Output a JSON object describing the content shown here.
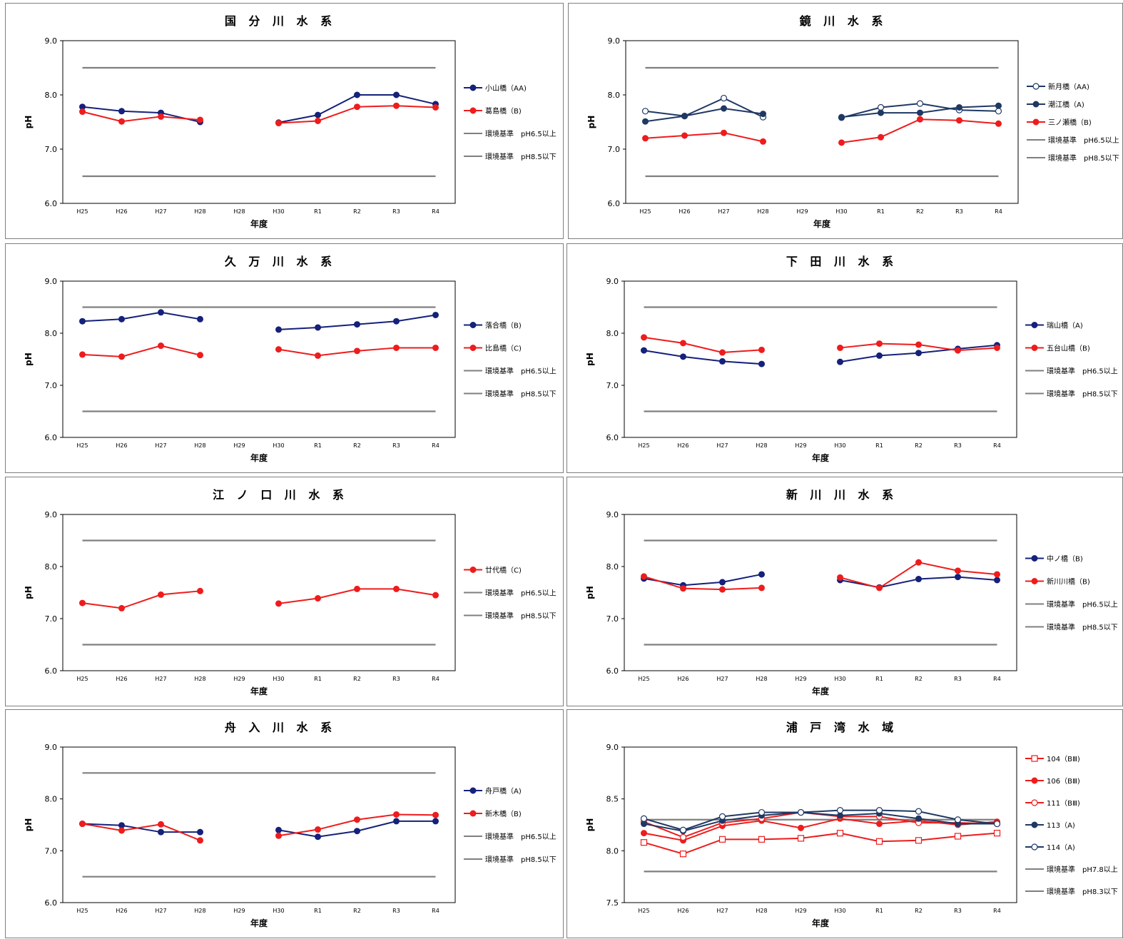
{
  "colors": {
    "navy": "#15217a",
    "slate": "#1f3864",
    "red": "#ee1c1c",
    "std": "#7f7f7f"
  },
  "chart_data": [
    {
      "type": "line",
      "title": "国 分 川 水 系",
      "xlabel": "年度",
      "ylabel": "pH",
      "ylim": [
        6.0,
        9.0
      ],
      "yticks": [
        "6.0",
        "7.0",
        "8.0",
        "9.0"
      ],
      "categories": [
        "H25",
        "H26",
        "H27",
        "H28",
        "H28",
        "H30",
        "R1",
        "R2",
        "R3",
        "R4"
      ],
      "series": [
        {
          "name": "小山橋（AA)",
          "color": "#15217a",
          "marker": "filled",
          "values": [
            7.78,
            7.7,
            7.67,
            7.5,
            null,
            7.49,
            7.63,
            8.0,
            8.0,
            7.83
          ]
        },
        {
          "name": "葛島橋（B)",
          "color": "#ee1c1c",
          "marker": "filled",
          "values": [
            7.69,
            7.51,
            7.6,
            7.54,
            null,
            7.48,
            7.52,
            7.78,
            7.8,
            7.77
          ]
        },
        {
          "name": "環境基準　pH6.5以上",
          "color": "#7f7f7f",
          "marker": "none",
          "values": [
            6.5,
            6.5,
            6.5,
            6.5,
            6.5,
            6.5,
            6.5,
            6.5,
            6.5,
            6.5
          ]
        },
        {
          "name": "環境基準　pH8.5以下",
          "color": "#7f7f7f",
          "marker": "none",
          "values": [
            8.5,
            8.5,
            8.5,
            8.5,
            8.5,
            8.5,
            8.5,
            8.5,
            8.5,
            8.5
          ]
        }
      ]
    },
    {
      "type": "line",
      "title": "鏡 川 水 系",
      "xlabel": "年度",
      "ylabel": "pH",
      "ylim": [
        6.0,
        9.0
      ],
      "yticks": [
        "6.0",
        "7.0",
        "8.0",
        "9.0"
      ],
      "categories": [
        "H25",
        "H26",
        "H27",
        "H28",
        "H29",
        "H30",
        "R1",
        "R2",
        "R3",
        "R4"
      ],
      "series": [
        {
          "name": "新月橋（AA)",
          "color": "#1f3864",
          "marker": "open",
          "values": [
            7.7,
            7.61,
            7.94,
            7.59,
            null,
            7.58,
            7.77,
            7.84,
            7.72,
            7.7
          ]
        },
        {
          "name": "潮江橋（A)",
          "color": "#1f3864",
          "marker": "filled",
          "values": [
            7.51,
            7.61,
            7.75,
            7.65,
            null,
            7.59,
            7.67,
            7.67,
            7.77,
            7.8
          ]
        },
        {
          "name": "三ノ瀬橋（B)",
          "color": "#ee1c1c",
          "marker": "filled",
          "values": [
            7.2,
            7.25,
            7.3,
            7.14,
            null,
            7.12,
            7.22,
            7.55,
            7.53,
            7.47
          ]
        },
        {
          "name": "環境基準　pH6.5以上",
          "color": "#7f7f7f",
          "marker": "none",
          "values": [
            6.5,
            6.5,
            6.5,
            6.5,
            6.5,
            6.5,
            6.5,
            6.5,
            6.5,
            6.5
          ]
        },
        {
          "name": "環境基準　pH8.5以下",
          "color": "#7f7f7f",
          "marker": "none",
          "values": [
            8.5,
            8.5,
            8.5,
            8.5,
            8.5,
            8.5,
            8.5,
            8.5,
            8.5,
            8.5
          ]
        }
      ]
    },
    {
      "type": "line",
      "title": "久 万 川 水 系",
      "xlabel": "年度",
      "ylabel": "pH",
      "ylim": [
        6.0,
        9.0
      ],
      "yticks": [
        "6.0",
        "7.0",
        "8.0",
        "9.0"
      ],
      "categories": [
        "H25",
        "H26",
        "H27",
        "H28",
        "H29",
        "H30",
        "R1",
        "R2",
        "R3",
        "R4"
      ],
      "series": [
        {
          "name": "落合橋（B)",
          "color": "#15217a",
          "marker": "filled",
          "values": [
            8.23,
            8.27,
            8.4,
            8.27,
            null,
            8.07,
            8.11,
            8.17,
            8.23,
            8.35
          ]
        },
        {
          "name": "比島橋（C)",
          "color": "#ee1c1c",
          "marker": "filled",
          "values": [
            7.59,
            7.55,
            7.76,
            7.58,
            null,
            7.69,
            7.57,
            7.66,
            7.72,
            7.72
          ]
        },
        {
          "name": "環境基準　pH6.5以上",
          "color": "#7f7f7f",
          "marker": "none",
          "values": [
            6.5,
            6.5,
            6.5,
            6.5,
            6.5,
            6.5,
            6.5,
            6.5,
            6.5,
            6.5
          ]
        },
        {
          "name": "環境基準　pH8.5以下",
          "color": "#7f7f7f",
          "marker": "none",
          "values": [
            8.5,
            8.5,
            8.5,
            8.5,
            8.5,
            8.5,
            8.5,
            8.5,
            8.5,
            8.5
          ]
        }
      ]
    },
    {
      "type": "line",
      "title": "下 田 川 水 系",
      "xlabel": "年度",
      "ylabel": "pH",
      "ylim": [
        6.0,
        9.0
      ],
      "yticks": [
        "6.0",
        "7.0",
        "8.0",
        "9.0"
      ],
      "categories": [
        "H25",
        "H26",
        "H27",
        "H28",
        "H29",
        "H30",
        "R1",
        "R2",
        "R3",
        "R4"
      ],
      "series": [
        {
          "name": "瑞山橋（A)",
          "color": "#15217a",
          "marker": "filled",
          "values": [
            7.67,
            7.55,
            7.46,
            7.41,
            null,
            7.45,
            7.57,
            7.62,
            7.7,
            7.77
          ]
        },
        {
          "name": "五台山橋（B)",
          "color": "#ee1c1c",
          "marker": "filled",
          "values": [
            7.92,
            7.81,
            7.63,
            7.68,
            null,
            7.72,
            7.8,
            7.78,
            7.67,
            7.72
          ]
        },
        {
          "name": "環境基準　pH6.5以上",
          "color": "#7f7f7f",
          "marker": "none",
          "values": [
            6.5,
            6.5,
            6.5,
            6.5,
            6.5,
            6.5,
            6.5,
            6.5,
            6.5,
            6.5
          ]
        },
        {
          "name": "環境基準　pH8.5以下",
          "color": "#7f7f7f",
          "marker": "none",
          "values": [
            8.5,
            8.5,
            8.5,
            8.5,
            8.5,
            8.5,
            8.5,
            8.5,
            8.5,
            8.5
          ]
        }
      ]
    },
    {
      "type": "line",
      "title": "江 ノ 口 川 水 系",
      "xlabel": "年度",
      "ylabel": "pH",
      "ylim": [
        6.0,
        9.0
      ],
      "yticks": [
        "6.0",
        "7.0",
        "8.0",
        "9.0"
      ],
      "categories": [
        "H25",
        "H26",
        "H27",
        "H28",
        "H29",
        "H30",
        "R1",
        "R2",
        "R3",
        "R4"
      ],
      "series": [
        {
          "name": "廿代橋（C)",
          "color": "#ee1c1c",
          "marker": "filled",
          "values": [
            7.3,
            7.2,
            7.46,
            7.53,
            null,
            7.29,
            7.39,
            7.57,
            7.57,
            7.45
          ]
        },
        {
          "name": "環境基準　pH6.5以上",
          "color": "#7f7f7f",
          "marker": "none",
          "values": [
            6.5,
            6.5,
            6.5,
            6.5,
            6.5,
            6.5,
            6.5,
            6.5,
            6.5,
            6.5
          ]
        },
        {
          "name": "環境基準　pH8.5以下",
          "color": "#7f7f7f",
          "marker": "none",
          "values": [
            8.5,
            8.5,
            8.5,
            8.5,
            8.5,
            8.5,
            8.5,
            8.5,
            8.5,
            8.5
          ]
        }
      ]
    },
    {
      "type": "line",
      "title": "新 川 川 水 系",
      "xlabel": "年度",
      "ylabel": "pH",
      "ylim": [
        6.0,
        9.0
      ],
      "yticks": [
        "6.0",
        "7.0",
        "8.0",
        "9.0"
      ],
      "categories": [
        "H25",
        "H26",
        "H27",
        "H28",
        "H29",
        "H30",
        "R1",
        "R2",
        "R3",
        "R4"
      ],
      "series": [
        {
          "name": "中ノ橋（B)",
          "color": "#15217a",
          "marker": "filled",
          "values": [
            7.77,
            7.64,
            7.7,
            7.85,
            null,
            7.74,
            7.6,
            7.76,
            7.8,
            7.74
          ]
        },
        {
          "name": "新川川橋（B)",
          "color": "#ee1c1c",
          "marker": "filled",
          "values": [
            7.81,
            7.58,
            7.56,
            7.59,
            null,
            7.79,
            7.59,
            8.08,
            7.92,
            7.85
          ]
        },
        {
          "name": "環境基準　pH6.5以上",
          "color": "#7f7f7f",
          "marker": "none",
          "values": [
            6.5,
            6.5,
            6.5,
            6.5,
            6.5,
            6.5,
            6.5,
            6.5,
            6.5,
            6.5
          ]
        },
        {
          "name": "環境基準　pH8.5以下",
          "color": "#7f7f7f",
          "marker": "none",
          "values": [
            8.5,
            8.5,
            8.5,
            8.5,
            8.5,
            8.5,
            8.5,
            8.5,
            8.5,
            8.5
          ]
        }
      ]
    },
    {
      "type": "line",
      "title": "舟 入 川 水 系",
      "xlabel": "年度",
      "ylabel": "pH",
      "ylim": [
        6.0,
        9.0
      ],
      "yticks": [
        "6.0",
        "7.0",
        "8.0",
        "9.0"
      ],
      "categories": [
        "H25",
        "H26",
        "H27",
        "H28",
        "H29",
        "H30",
        "R1",
        "R2",
        "R3",
        "R4"
      ],
      "series": [
        {
          "name": "舟戸橋（A)",
          "color": "#15217a",
          "marker": "filled",
          "values": [
            7.52,
            7.49,
            7.36,
            7.36,
            null,
            7.4,
            7.27,
            7.38,
            7.57,
            7.57
          ]
        },
        {
          "name": "新木橋（B)",
          "color": "#ee1c1c",
          "marker": "filled",
          "values": [
            7.52,
            7.39,
            7.51,
            7.2,
            null,
            7.29,
            7.41,
            7.6,
            7.7,
            7.69
          ]
        },
        {
          "name": "環境基準　pH6.5以上",
          "color": "#7f7f7f",
          "marker": "none",
          "values": [
            6.5,
            6.5,
            6.5,
            6.5,
            6.5,
            6.5,
            6.5,
            6.5,
            6.5,
            6.5
          ]
        },
        {
          "name": "環境基準　pH8.5以下",
          "color": "#7f7f7f",
          "marker": "none",
          "values": [
            8.5,
            8.5,
            8.5,
            8.5,
            8.5,
            8.5,
            8.5,
            8.5,
            8.5,
            8.5
          ]
        }
      ]
    },
    {
      "type": "line",
      "title": "浦 戸 湾 水 域",
      "xlabel": "年度",
      "ylabel": "pH",
      "ylim": [
        7.5,
        9.0
      ],
      "yticks": [
        "7.5",
        "8.0",
        "8.5",
        "9.0"
      ],
      "categories": [
        "H25",
        "H26",
        "H27",
        "H28",
        "H29",
        "H30",
        "R1",
        "R2",
        "R3",
        "R4"
      ],
      "series": [
        {
          "name": "104（BⅢ)",
          "color": "#ee1c1c",
          "marker": "opensquare",
          "values": [
            8.08,
            7.97,
            8.11,
            8.11,
            8.12,
            8.17,
            8.09,
            8.1,
            8.14,
            8.17
          ]
        },
        {
          "name": "106（BⅢ)",
          "color": "#ee1c1c",
          "marker": "filled",
          "values": [
            8.17,
            8.1,
            8.24,
            8.29,
            8.22,
            8.31,
            8.26,
            8.29,
            8.25,
            8.28
          ]
        },
        {
          "name": "111（BⅢ)",
          "color": "#ee1c1c",
          "marker": "open",
          "values": [
            8.28,
            8.13,
            8.27,
            8.31,
            8.37,
            8.33,
            8.33,
            8.27,
            8.27,
            8.26
          ]
        },
        {
          "name": "113（A)",
          "color": "#1f3864",
          "marker": "filled",
          "values": [
            8.26,
            8.19,
            8.29,
            8.34,
            8.37,
            8.34,
            8.36,
            8.31,
            8.26,
            8.26
          ]
        },
        {
          "name": "114（A)",
          "color": "#1f3864",
          "marker": "open",
          "values": [
            8.31,
            8.2,
            8.33,
            8.37,
            8.37,
            8.39,
            8.39,
            8.38,
            8.3,
            8.26
          ]
        },
        {
          "name": "環境基準　pH7.8以上",
          "color": "#7f7f7f",
          "marker": "none",
          "values": [
            7.8,
            7.8,
            7.8,
            7.8,
            7.8,
            7.8,
            7.8,
            7.8,
            7.8,
            7.8
          ]
        },
        {
          "name": "環境基準　pH8.3以下",
          "color": "#7f7f7f",
          "marker": "none",
          "values": [
            8.3,
            8.3,
            8.3,
            8.3,
            8.3,
            8.3,
            8.3,
            8.3,
            8.3,
            8.3
          ]
        }
      ]
    }
  ]
}
